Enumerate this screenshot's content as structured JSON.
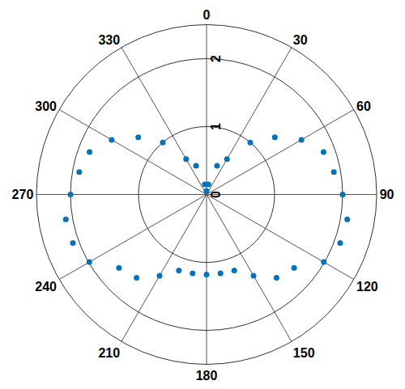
{
  "chart_data": {
    "type": "polar",
    "x": [
      0,
      10,
      20,
      30,
      40,
      50,
      60,
      70,
      80,
      90,
      100,
      110,
      120,
      130,
      140,
      150,
      160,
      170,
      180,
      190,
      200,
      210,
      220,
      230,
      240,
      250,
      260,
      270,
      280,
      290,
      300,
      310,
      320,
      330,
      340,
      350
    ],
    "values": [
      0.05,
      0.15,
      0.45,
      0.6,
      1.0,
      1.31,
      1.61,
      1.83,
      1.9,
      2.0,
      2.1,
      2.09,
      1.99,
      1.68,
      1.6,
      1.38,
      1.19,
      1.18,
      1.18,
      1.18,
      1.19,
      1.38,
      1.6,
      1.68,
      1.99,
      2.09,
      2.1,
      2.0,
      1.9,
      1.83,
      1.61,
      1.31,
      1.0,
      0.6,
      0.45,
      0.15
    ],
    "xticks": [
      0,
      30,
      60,
      90,
      120,
      150,
      180,
      210,
      240,
      270,
      300,
      330
    ],
    "ylim": [
      0,
      2.5
    ],
    "yticks": [
      0,
      1,
      2
    ],
    "color": "#0072bd",
    "marker": "circle",
    "grid": true
  }
}
